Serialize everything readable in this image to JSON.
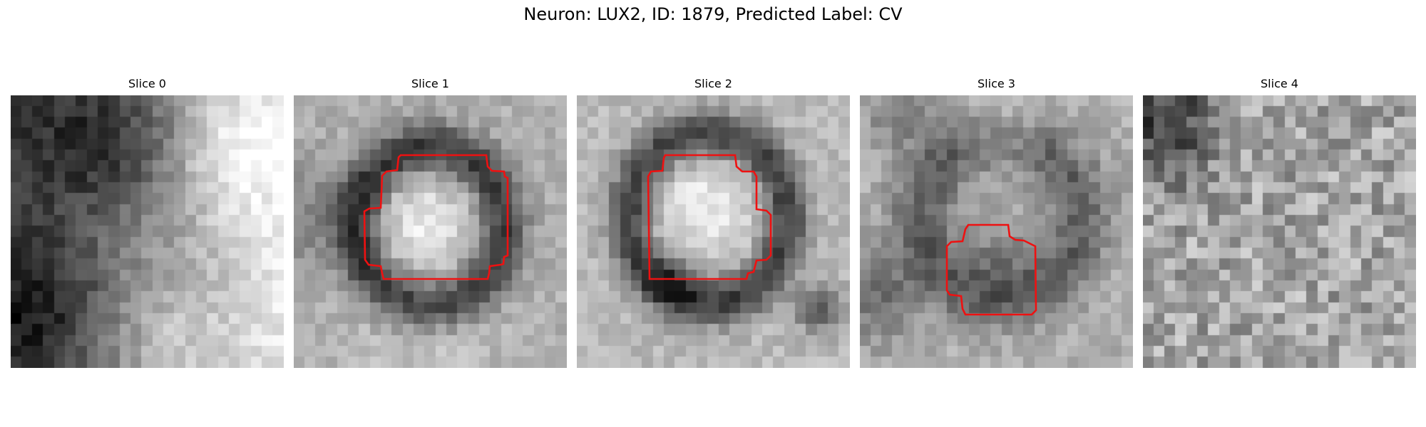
{
  "figure": {
    "title": "Neuron: LUX2, ID: 1879, Predicted Label: CV"
  },
  "panels": [
    {
      "title": "Slice 0",
      "has_mask": false,
      "pattern": "dark-left-bright-right"
    },
    {
      "title": "Slice 1",
      "has_mask": true,
      "pattern": "ring-bright-center"
    },
    {
      "title": "Slice 2",
      "has_mask": true,
      "pattern": "ring-bright-center-lower-diag"
    },
    {
      "title": "Slice 3",
      "has_mask": true,
      "pattern": "faint-ring-grey"
    },
    {
      "title": "Slice 4",
      "has_mask": false,
      "pattern": "noise-dark-topleft"
    }
  ],
  "colors": {
    "mask_outline": "#ee1111",
    "background": "#ffffff"
  }
}
